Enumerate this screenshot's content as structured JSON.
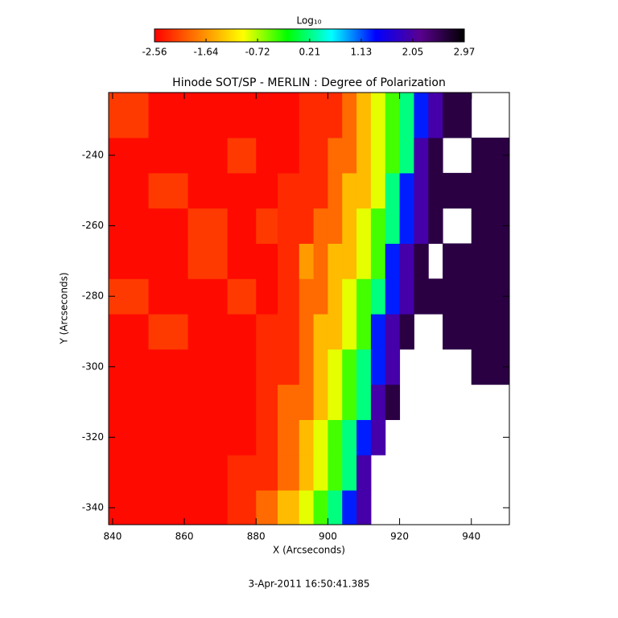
{
  "chart_data": {
    "type": "heatmap",
    "title": "Hinode SOT/SP - MERLIN : Degree of Polarization",
    "x_label": "X (Arcseconds)",
    "y_label": "Y (Arcseconds)",
    "footer": "3-Apr-2011 16:50:41.385",
    "colorbar_title": "Log₁₀",
    "clim": [
      -2.56,
      2.97
    ],
    "colorbar_ticks": [
      -2.56,
      -1.64,
      -0.72,
      0.21,
      1.13,
      2.05,
      2.97
    ],
    "colormap": [
      "#ff0000",
      "#ff8000",
      "#ffff00",
      "#00ff00",
      "#00ffff",
      "#0000ff",
      "#5a0090",
      "#000000"
    ],
    "xlim": [
      838.9,
      950.6
    ],
    "ylim": [
      -344.8,
      -222.2
    ],
    "xticks": [
      840,
      860,
      880,
      900,
      920,
      940
    ],
    "yticks": [
      -340,
      -320,
      -300,
      -280,
      -260,
      -240
    ],
    "x_edges": [
      838.9,
      850,
      861,
      872,
      880,
      886,
      892,
      896,
      900,
      904,
      908,
      912,
      916,
      920,
      924,
      928,
      932,
      940,
      950.6
    ],
    "y_edges": [
      -344.8,
      -335,
      -325,
      -315,
      -305,
      -295,
      -285,
      -275,
      -265,
      -255,
      -245,
      -235,
      -222.2
    ],
    "z": [
      [
        -2.5,
        -2.5,
        -2.5,
        -2.3,
        -1.9,
        -1.4,
        -0.9,
        -0.4,
        0.2,
        1.3,
        2.0,
        null,
        null,
        null,
        null,
        null,
        null,
        null
      ],
      [
        -2.5,
        -2.5,
        -2.5,
        -2.3,
        -2.3,
        -1.9,
        -1.4,
        -0.9,
        -0.4,
        0.2,
        2.0,
        null,
        null,
        null,
        null,
        null,
        null,
        null
      ],
      [
        -2.5,
        -2.5,
        -2.5,
        -2.5,
        -2.3,
        -1.9,
        -1.4,
        -0.9,
        -0.4,
        0.2,
        1.3,
        2.0,
        null,
        null,
        null,
        null,
        null,
        null
      ],
      [
        -2.5,
        -2.5,
        -2.5,
        -2.5,
        -2.3,
        -1.9,
        -1.9,
        -1.4,
        -0.9,
        -0.4,
        0.2,
        2.0,
        2.6,
        null,
        null,
        null,
        null,
        null
      ],
      [
        -2.5,
        -2.5,
        -2.5,
        -2.5,
        -2.3,
        -2.3,
        -1.9,
        -1.4,
        -0.9,
        -0.4,
        0.2,
        1.3,
        2.0,
        null,
        null,
        null,
        null,
        2.6
      ],
      [
        -2.5,
        -2.2,
        -2.5,
        -2.5,
        -2.3,
        -2.3,
        -1.9,
        -1.4,
        -1.4,
        -0.9,
        -0.4,
        1.3,
        2.0,
        2.6,
        null,
        null,
        2.6,
        2.6
      ],
      [
        -2.2,
        -2.5,
        -2.5,
        -2.2,
        -2.5,
        -2.3,
        -1.9,
        -1.9,
        -1.4,
        -0.9,
        -0.4,
        0.2,
        1.3,
        2.0,
        2.6,
        2.6,
        2.6,
        2.6
      ],
      [
        -2.5,
        -2.5,
        -2.2,
        -2.5,
        -2.5,
        -2.3,
        -1.6,
        -1.9,
        -1.4,
        -1.4,
        -0.9,
        -0.4,
        1.3,
        2.0,
        2.6,
        null,
        2.6,
        2.6
      ],
      [
        -2.5,
        -2.5,
        -2.2,
        -2.5,
        -2.2,
        -2.3,
        -2.3,
        -1.9,
        -1.9,
        -1.4,
        -0.9,
        -0.4,
        0.2,
        1.3,
        2.0,
        2.6,
        null,
        2.6
      ],
      [
        -2.5,
        -2.2,
        -2.5,
        -2.5,
        -2.5,
        -2.3,
        -2.3,
        -2.3,
        -1.9,
        -1.4,
        -1.4,
        -0.9,
        0.2,
        1.3,
        2.0,
        2.6,
        2.6,
        2.6
      ],
      [
        -2.5,
        -2.5,
        -2.5,
        -2.2,
        -2.5,
        -2.5,
        -2.3,
        -2.3,
        -1.9,
        -1.9,
        -1.4,
        -0.9,
        -0.4,
        0.2,
        2.0,
        2.6,
        null,
        2.6
      ],
      [
        -2.2,
        -2.5,
        -2.5,
        -2.5,
        -2.5,
        -2.5,
        -2.3,
        -2.3,
        -2.3,
        -1.9,
        -1.4,
        -0.9,
        -0.4,
        0.2,
        1.3,
        2.0,
        2.6,
        null
      ]
    ]
  }
}
